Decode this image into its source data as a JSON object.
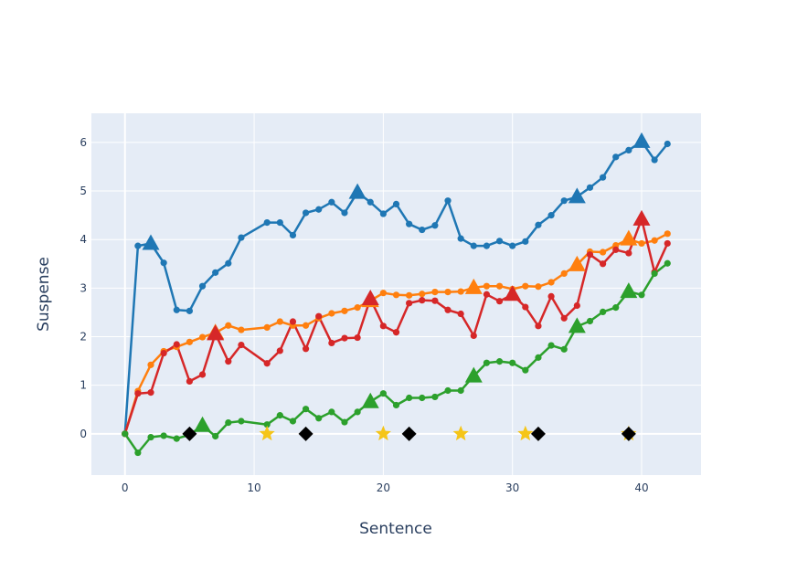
{
  "chart_data": {
    "type": "line",
    "title": "",
    "xlabel": "Sentence",
    "ylabel": "Suspense",
    "xlim": [
      -2.6,
      44.6
    ],
    "ylim": [
      -0.85,
      6.6
    ],
    "xticks": [
      0,
      10,
      20,
      30,
      40
    ],
    "yticks": [
      0,
      1,
      2,
      3,
      4,
      5,
      6
    ],
    "grid": true,
    "legend": "none",
    "colors": {
      "plot_background": "#e5ecf6",
      "grid": "#ffffff",
      "text": "#2a3f5f"
    },
    "series": [
      {
        "color": "#1f77b4",
        "x": [
          0,
          1,
          2,
          3,
          4,
          5,
          6,
          7,
          8,
          9,
          11,
          12,
          13,
          14,
          15,
          16,
          17,
          18,
          19,
          20,
          21,
          22,
          23,
          24,
          25,
          26,
          27,
          28,
          29,
          30,
          31,
          32,
          33,
          34,
          35,
          36,
          37,
          38,
          39,
          40,
          41,
          42
        ],
        "y": [
          0,
          3.87,
          3.92,
          3.52,
          2.55,
          2.53,
          3.04,
          3.32,
          3.51,
          4.04,
          4.35,
          4.35,
          4.09,
          4.55,
          4.62,
          4.77,
          4.55,
          4.97,
          4.77,
          4.53,
          4.73,
          4.32,
          4.2,
          4.29,
          4.8,
          4.02,
          3.87,
          3.87,
          3.97,
          3.87,
          3.96,
          4.3,
          4.5,
          4.8,
          4.88,
          5.07,
          5.28,
          5.7,
          5.84,
          6.02,
          5.64,
          5.97
        ],
        "highlight_x": [
          2,
          18,
          35,
          40
        ],
        "highlight_marker": "triangle"
      },
      {
        "color": "#ff7f0e",
        "x": [
          0,
          1,
          2,
          3,
          4,
          5,
          6,
          7,
          8,
          9,
          11,
          12,
          13,
          14,
          15,
          16,
          17,
          18,
          19,
          20,
          21,
          22,
          23,
          24,
          25,
          26,
          27,
          28,
          29,
          30,
          31,
          32,
          33,
          34,
          35,
          36,
          37,
          38,
          39,
          40,
          41,
          42
        ],
        "y": [
          0,
          0.88,
          1.42,
          1.7,
          1.79,
          1.89,
          1.99,
          2.08,
          2.23,
          2.14,
          2.19,
          2.31,
          2.23,
          2.23,
          2.38,
          2.48,
          2.53,
          2.6,
          2.74,
          2.9,
          2.86,
          2.85,
          2.88,
          2.92,
          2.92,
          2.93,
          3.01,
          3.04,
          3.04,
          2.98,
          3.04,
          3.03,
          3.12,
          3.3,
          3.48,
          3.75,
          3.74,
          3.88,
          4.01,
          3.92,
          3.98,
          4.12
        ],
        "highlight_x": [
          7,
          19,
          27,
          35,
          39
        ],
        "highlight_marker": "triangle"
      },
      {
        "color": "#d62728",
        "x": [
          0,
          1,
          2,
          3,
          4,
          5,
          6,
          7,
          8,
          9,
          11,
          12,
          13,
          14,
          15,
          16,
          17,
          18,
          19,
          20,
          21,
          22,
          23,
          24,
          25,
          26,
          27,
          28,
          29,
          30,
          31,
          32,
          33,
          34,
          35,
          36,
          37,
          38,
          39,
          40,
          41,
          42
        ],
        "y": [
          0,
          0.83,
          0.85,
          1.66,
          1.84,
          1.08,
          1.22,
          2.06,
          1.49,
          1.83,
          1.45,
          1.71,
          2.31,
          1.75,
          2.42,
          1.87,
          1.97,
          1.98,
          2.78,
          2.22,
          2.09,
          2.69,
          2.75,
          2.74,
          2.55,
          2.47,
          2.02,
          2.87,
          2.73,
          2.87,
          2.61,
          2.22,
          2.83,
          2.38,
          2.64,
          3.69,
          3.5,
          3.79,
          3.72,
          4.42,
          3.33,
          3.92
        ],
        "highlight_x": [
          7,
          19,
          30,
          40
        ],
        "highlight_marker": "triangle"
      },
      {
        "color": "#2ca02c",
        "x": [
          0,
          1,
          2,
          3,
          4,
          5,
          6,
          7,
          8,
          9,
          11,
          12,
          13,
          14,
          15,
          16,
          17,
          18,
          19,
          20,
          21,
          22,
          23,
          24,
          25,
          26,
          27,
          28,
          29,
          30,
          31,
          32,
          33,
          34,
          35,
          36,
          37,
          38,
          39,
          40,
          41,
          42
        ],
        "y": [
          0,
          -0.39,
          -0.07,
          -0.04,
          -0.1,
          -0.02,
          0.17,
          -0.05,
          0.23,
          0.26,
          0.19,
          0.38,
          0.26,
          0.51,
          0.32,
          0.45,
          0.24,
          0.45,
          0.66,
          0.83,
          0.59,
          0.74,
          0.74,
          0.76,
          0.89,
          0.89,
          1.19,
          1.46,
          1.49,
          1.46,
          1.31,
          1.57,
          1.82,
          1.74,
          2.21,
          2.32,
          2.51,
          2.6,
          2.93,
          2.86,
          3.3,
          3.51
        ],
        "highlight_x": [
          6,
          19,
          27,
          35,
          39
        ],
        "highlight_marker": "triangle"
      }
    ],
    "event_markers": [
      {
        "marker": "star",
        "color": "#f5c518",
        "x": [
          11,
          20,
          26,
          31,
          39
        ],
        "y": [
          0,
          0,
          0,
          0,
          0
        ]
      },
      {
        "marker": "diamond",
        "color": "#000000",
        "x": [
          5,
          14,
          22,
          32,
          39
        ],
        "y": [
          0,
          0,
          0,
          0,
          0
        ]
      }
    ]
  }
}
